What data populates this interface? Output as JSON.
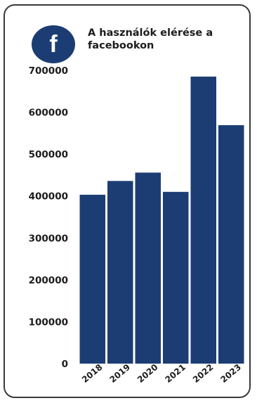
{
  "card": {
    "title": "A használók elérése a facebookon",
    "icon": "facebook-icon",
    "icon_glyph": "f",
    "icon_color": "#1c3d74"
  },
  "chart_data": {
    "type": "bar",
    "title": "A használók elérése a facebookon",
    "xlabel": "",
    "ylabel": "",
    "categories": [
      "2018",
      "2019",
      "2020",
      "2021",
      "2022",
      "2023"
    ],
    "values": [
      403000,
      436000,
      456000,
      410000,
      685000,
      569000
    ],
    "ylim": [
      0,
      700000
    ],
    "yticks": [
      "0",
      "100000",
      "200000",
      "300000",
      "400000",
      "500000",
      "600000",
      "700000"
    ],
    "bar_color": "#1c3d74",
    "grid": false,
    "legend": "none"
  }
}
